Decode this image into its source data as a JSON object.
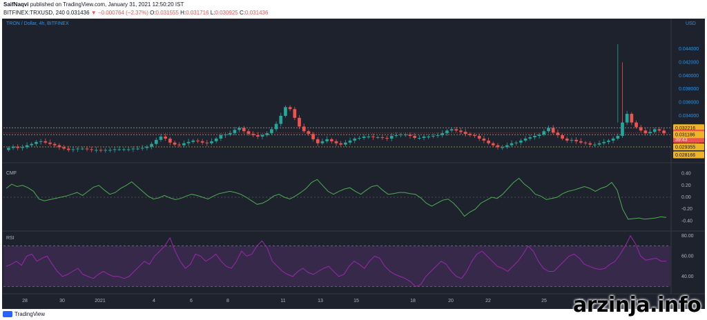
{
  "header": {
    "author": "SaifNaqvi",
    "published_text": "published on TradingView.com, January 31, 2021 12:50:20 IST",
    "symbol": "BITFINEX:TRXUSD, 240",
    "last": "0.031436",
    "change": "▼ −0.000764 (−2.37%)",
    "o_label": "O:",
    "o_value": "0.031555",
    "h_label": "H:",
    "h_value": "0.031716",
    "l_label": "L:",
    "l_value": "0.030925",
    "c_label": "C:",
    "c_value": "0.031436"
  },
  "footer": {
    "logo_text": "TradingView",
    "watermark": "arzinja.info"
  },
  "colors": {
    "background": "#1e222d",
    "up": "#26a69a",
    "down": "#ef5350",
    "cmf_line": "#4caf50",
    "rsi_line": "#9c27b0",
    "rsi_band": "#3a2a4d",
    "axis_text": "#2196f3",
    "level_line": "#c8a24a"
  },
  "chart_data": [
    {
      "type": "candlestick",
      "title": "TRON / Dollar, 4h, BITFINEX",
      "unit": "USD",
      "y_ticks": [
        "0.044000",
        "0.042000",
        "0.040000",
        "0.038000",
        "0.036000",
        "0.034000",
        "0.030000"
      ],
      "ylim": [
        0.0275,
        0.0475
      ],
      "x_ticks": [
        "28",
        "30",
        "2021",
        "4",
        "6",
        "8",
        "11",
        "13",
        "15",
        "18",
        "20",
        "22",
        "25",
        "27",
        "29",
        "Feb"
      ],
      "price_labels": [
        {
          "text": "0.032216",
          "value": 0.032216,
          "kind": "level"
        },
        {
          "text": "0.031436",
          "value": 0.031436,
          "kind": "last"
        },
        {
          "text": "39:43",
          "value": 0.0305,
          "kind": "timer"
        },
        {
          "text": "0.031186",
          "value": 0.031186,
          "kind": "level"
        },
        {
          "text": "0.029355",
          "value": 0.029355,
          "kind": "level"
        },
        {
          "text": "0.028166",
          "value": 0.028166,
          "kind": "level"
        }
      ],
      "levels": [
        0.032216,
        0.031186,
        0.029355
      ],
      "closes": [
        0.0292,
        0.0294,
        0.0292,
        0.0293,
        0.0296,
        0.0298,
        0.0301,
        0.0302,
        0.03,
        0.0298,
        0.0296,
        0.0293,
        0.0291,
        0.0289,
        0.029,
        0.0291,
        0.0291,
        0.029,
        0.0289,
        0.0289,
        0.0288,
        0.0289,
        0.0289,
        0.029,
        0.029,
        0.029,
        0.029,
        0.0291,
        0.0291,
        0.0292,
        0.0294,
        0.0298,
        0.0304,
        0.0309,
        0.0306,
        0.03,
        0.0297,
        0.0296,
        0.0299,
        0.0301,
        0.0303,
        0.0302,
        0.03,
        0.0299,
        0.0302,
        0.0306,
        0.0311,
        0.0312,
        0.0314,
        0.0319,
        0.0322,
        0.0317,
        0.0313,
        0.0311,
        0.0309,
        0.0311,
        0.0314,
        0.032,
        0.0328,
        0.034,
        0.0353,
        0.035,
        0.0337,
        0.0324,
        0.0317,
        0.0313,
        0.0305,
        0.0299,
        0.0302,
        0.0305,
        0.0302,
        0.0299,
        0.0297,
        0.03,
        0.0303,
        0.0306,
        0.0307,
        0.0309,
        0.0309,
        0.0308,
        0.0308,
        0.0307,
        0.0306,
        0.031,
        0.0311,
        0.0312,
        0.0312,
        0.031,
        0.0307,
        0.0307,
        0.0309,
        0.0309,
        0.031,
        0.0311,
        0.0314,
        0.0318,
        0.032,
        0.0318,
        0.0316,
        0.0313,
        0.0311,
        0.031,
        0.0306,
        0.0303,
        0.0299,
        0.0296,
        0.0293,
        0.0293,
        0.0296,
        0.0299,
        0.03,
        0.0303,
        0.0306,
        0.0308,
        0.031,
        0.0312,
        0.0317,
        0.0322,
        0.0315,
        0.0311,
        0.0306,
        0.0303,
        0.0304,
        0.0302,
        0.03,
        0.0299,
        0.0297,
        0.0297,
        0.0299,
        0.0301,
        0.0303,
        0.0306,
        0.031,
        0.033,
        0.0343,
        0.033,
        0.0323,
        0.0318,
        0.0314,
        0.0316,
        0.032,
        0.0318,
        0.0314
      ]
    },
    {
      "type": "line",
      "title": "CMF",
      "y_ticks": [
        "0.40",
        "0.20",
        "0.00",
        "-0.20",
        "-0.40"
      ],
      "ylim": [
        -0.5,
        0.5
      ],
      "values": [
        0.15,
        0.22,
        0.18,
        0.2,
        0.16,
        0.1,
        -0.03,
        -0.06,
        -0.04,
        -0.02,
        0.0,
        0.02,
        0.05,
        0.08,
        0.03,
        0.1,
        0.17,
        0.2,
        0.12,
        0.05,
        0.08,
        0.15,
        0.2,
        0.26,
        0.18,
        0.1,
        0.02,
        -0.03,
        -0.01,
        0.03,
        -0.01,
        -0.04,
        -0.02,
        0.02,
        0.05,
        0.03,
        0.0,
        -0.03,
        0.02,
        0.06,
        0.08,
        0.1,
        0.08,
        0.05,
        0.0,
        -0.06,
        -0.12,
        -0.1,
        -0.05,
        0.02,
        0.05,
        0.0,
        -0.03,
        0.02,
        0.08,
        0.15,
        0.25,
        0.3,
        0.2,
        0.1,
        0.05,
        0.1,
        0.14,
        0.16,
        0.1,
        0.05,
        0.12,
        0.18,
        0.2,
        0.12,
        0.05,
        0.06,
        0.08,
        0.08,
        0.06,
        0.05,
        -0.01,
        -0.1,
        -0.15,
        -0.1,
        -0.05,
        -0.03,
        -0.1,
        -0.2,
        -0.32,
        -0.25,
        -0.2,
        -0.1,
        -0.05,
        0.0,
        -0.02,
        0.05,
        0.15,
        0.25,
        0.32,
        0.22,
        0.15,
        0.05,
        0.02,
        -0.04,
        -0.02,
        0.0,
        0.06,
        0.1,
        0.12,
        0.15,
        0.18,
        0.15,
        0.1,
        0.15,
        0.18,
        0.25,
        0.12,
        -0.2,
        -0.37,
        -0.36,
        -0.35,
        -0.37,
        -0.36,
        -0.35,
        -0.33,
        -0.34
      ],
      "zero_line": true
    },
    {
      "type": "line",
      "title": "RSI",
      "y_ticks": [
        "80.00",
        "60.00",
        "40.00"
      ],
      "ylim": [
        25,
        82
      ],
      "bands": [
        70,
        30
      ],
      "values": [
        50,
        52,
        55,
        51,
        60,
        62,
        55,
        58,
        60,
        52,
        45,
        40,
        42,
        45,
        48,
        42,
        40,
        38,
        42,
        45,
        42,
        40,
        40,
        38,
        40,
        45,
        50,
        55,
        52,
        60,
        65,
        70,
        78,
        65,
        55,
        48,
        52,
        62,
        60,
        55,
        58,
        62,
        55,
        50,
        48,
        55,
        65,
        60,
        62,
        70,
        75,
        68,
        55,
        50,
        45,
        42,
        40,
        45,
        48,
        44,
        42,
        45,
        48,
        50,
        45,
        40,
        42,
        50,
        55,
        52,
        48,
        55,
        60,
        58,
        50,
        45,
        42,
        40,
        38,
        35,
        30,
        32,
        40,
        45,
        50,
        55,
        52,
        45,
        40,
        38,
        45,
        55,
        62,
        65,
        60,
        55,
        50,
        48,
        45,
        50,
        55,
        62,
        70,
        65,
        55,
        48,
        45,
        45,
        50,
        55,
        60,
        62,
        58,
        52,
        50,
        48,
        47,
        48,
        52,
        55,
        62,
        70,
        80,
        72,
        60,
        56,
        57,
        58,
        55,
        55
      ]
    }
  ]
}
